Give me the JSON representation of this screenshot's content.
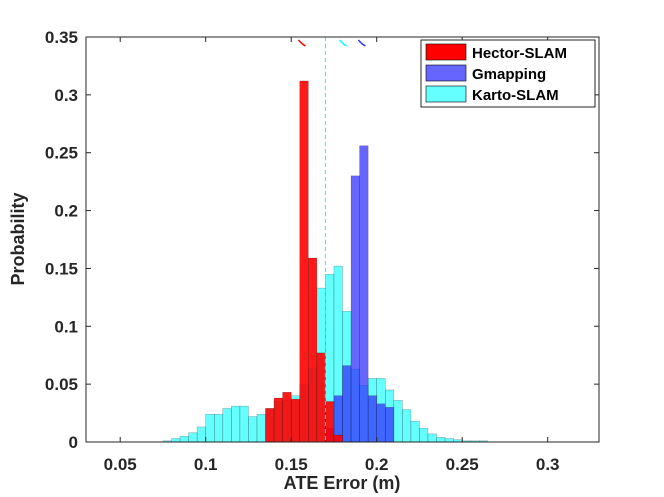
{
  "chart_data": {
    "type": "histogram",
    "xlabel": "ATE Error (m)",
    "ylabel": "Probability",
    "xlim": [
      0.03,
      0.33
    ],
    "ylim": [
      0,
      0.35
    ],
    "xticks": [
      "0.05",
      "0.1",
      "0.15",
      "0.2",
      "0.25",
      "0.3"
    ],
    "yticks": [
      "0",
      "0.05",
      "0.1",
      "0.15",
      "0.2",
      "0.25",
      "0.3",
      "0.35"
    ],
    "bin_width": 0.005,
    "grid": false,
    "legend_position": "top-right",
    "series": [
      {
        "name": "Karto-SLAM",
        "color": "#00ffff",
        "opacity": 0.6,
        "bins": [
          {
            "x0": 0.075,
            "y": 0.001
          },
          {
            "x0": 0.08,
            "y": 0.003
          },
          {
            "x0": 0.085,
            "y": 0.005
          },
          {
            "x0": 0.09,
            "y": 0.008
          },
          {
            "x0": 0.095,
            "y": 0.013
          },
          {
            "x0": 0.1,
            "y": 0.024
          },
          {
            "x0": 0.105,
            "y": 0.024
          },
          {
            "x0": 0.11,
            "y": 0.029
          },
          {
            "x0": 0.115,
            "y": 0.031
          },
          {
            "x0": 0.12,
            "y": 0.031
          },
          {
            "x0": 0.125,
            "y": 0.022
          },
          {
            "x0": 0.13,
            "y": 0.024
          },
          {
            "x0": 0.135,
            "y": 0.029
          },
          {
            "x0": 0.14,
            "y": 0.035
          },
          {
            "x0": 0.145,
            "y": 0.036
          },
          {
            "x0": 0.15,
            "y": 0.04
          },
          {
            "x0": 0.155,
            "y": 0.05
          },
          {
            "x0": 0.16,
            "y": 0.064
          },
          {
            "x0": 0.165,
            "y": 0.133
          },
          {
            "x0": 0.17,
            "y": 0.145
          },
          {
            "x0": 0.175,
            "y": 0.152
          },
          {
            "x0": 0.18,
            "y": 0.113
          },
          {
            "x0": 0.185,
            "y": 0.063
          },
          {
            "x0": 0.19,
            "y": 0.049
          },
          {
            "x0": 0.195,
            "y": 0.055
          },
          {
            "x0": 0.2,
            "y": 0.055
          },
          {
            "x0": 0.205,
            "y": 0.045
          },
          {
            "x0": 0.21,
            "y": 0.036
          },
          {
            "x0": 0.215,
            "y": 0.028
          },
          {
            "x0": 0.22,
            "y": 0.018
          },
          {
            "x0": 0.225,
            "y": 0.012
          },
          {
            "x0": 0.23,
            "y": 0.007
          },
          {
            "x0": 0.235,
            "y": 0.004
          },
          {
            "x0": 0.24,
            "y": 0.003
          },
          {
            "x0": 0.245,
            "y": 0.002
          },
          {
            "x0": 0.25,
            "y": 0.001
          },
          {
            "x0": 0.255,
            "y": 0.001
          },
          {
            "x0": 0.26,
            "y": 0.001
          }
        ]
      },
      {
        "name": "Gmapping",
        "color": "#3333ff",
        "opacity": 0.75,
        "bins": [
          {
            "x0": 0.17,
            "y": 0.012
          },
          {
            "x0": 0.175,
            "y": 0.04
          },
          {
            "x0": 0.18,
            "y": 0.066
          },
          {
            "x0": 0.185,
            "y": 0.23
          },
          {
            "x0": 0.19,
            "y": 0.256
          },
          {
            "x0": 0.195,
            "y": 0.04
          },
          {
            "x0": 0.2,
            "y": 0.033
          },
          {
            "x0": 0.205,
            "y": 0.03
          }
        ]
      },
      {
        "name": "Hector-SLAM",
        "color": "#ff0000",
        "opacity": 0.9,
        "bins": [
          {
            "x0": 0.135,
            "y": 0.029
          },
          {
            "x0": 0.14,
            "y": 0.038
          },
          {
            "x0": 0.145,
            "y": 0.043
          },
          {
            "x0": 0.15,
            "y": 0.037
          },
          {
            "x0": 0.155,
            "y": 0.312
          },
          {
            "x0": 0.16,
            "y": 0.159
          },
          {
            "x0": 0.165,
            "y": 0.077
          },
          {
            "x0": 0.17,
            "y": 0.035
          },
          {
            "x0": 0.175,
            "y": 0.006
          }
        ]
      }
    ],
    "mean_lines": [
      {
        "series": "Karto-SLAM",
        "x": 0.17,
        "color": "#00ffff",
        "style": "dashed"
      }
    ],
    "top_markers": [
      {
        "series": "Hector-SLAM",
        "x": 0.156,
        "color": "#ff0000"
      },
      {
        "series": "Karto-SLAM",
        "x": 0.18,
        "color": "#00ffff"
      },
      {
        "series": "Gmapping",
        "x": 0.191,
        "color": "#3333ff"
      }
    ],
    "legend": [
      {
        "name": "Hector-SLAM",
        "color": "#ff0000"
      },
      {
        "name": "Gmapping",
        "color": "#6666ff"
      },
      {
        "name": "Karto-SLAM",
        "color": "#66ffff"
      }
    ]
  }
}
